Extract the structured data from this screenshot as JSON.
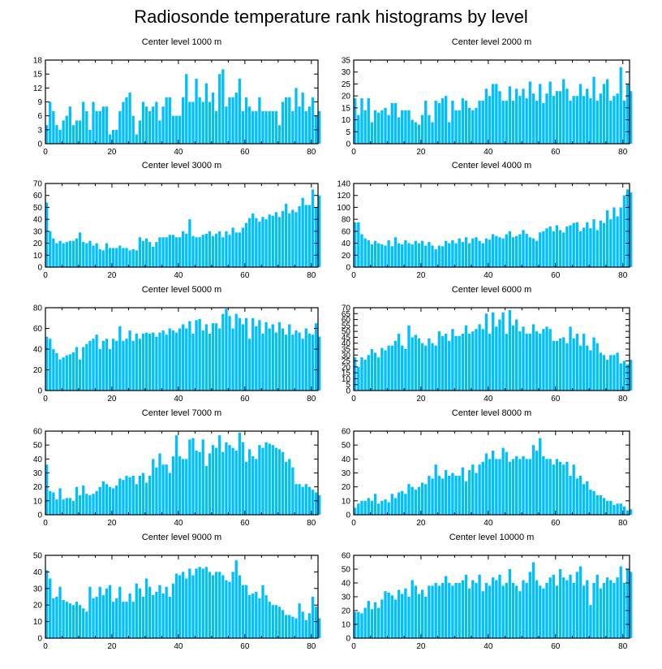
{
  "title": "Radiosonde temperature rank histograms by level",
  "bar_color": "#00bfff",
  "chart_data": [
    {
      "type": "bar",
      "title": "Center level 1000 m",
      "xlim": [
        0,
        82
      ],
      "ylim": [
        0,
        18
      ],
      "xticks": [
        0,
        20,
        40,
        60,
        80
      ],
      "yticks": [
        0,
        3,
        6,
        9,
        12,
        15,
        18
      ],
      "x_start": 0,
      "values": [
        4,
        9,
        7,
        4,
        3,
        5,
        6,
        8,
        4,
        5,
        5,
        9,
        7,
        3,
        9,
        7,
        7,
        8,
        8,
        2,
        3,
        3,
        7,
        9,
        10,
        11,
        6,
        2,
        5,
        9,
        8,
        7,
        8,
        9,
        5,
        8,
        10,
        10,
        6,
        6,
        6,
        10,
        15,
        9,
        9,
        14,
        10,
        9,
        13,
        9,
        11,
        7,
        15,
        16,
        8,
        10,
        10,
        11,
        14,
        7,
        10,
        8,
        7,
        7,
        10,
        7,
        7,
        7,
        7,
        7,
        4,
        9,
        10,
        10,
        7,
        12,
        8,
        11,
        7,
        8,
        10,
        6,
        7
      ]
    },
    {
      "type": "bar",
      "title": "Center level 2000 m",
      "xlim": [
        0,
        82
      ],
      "ylim": [
        0,
        35
      ],
      "xticks": [
        0,
        20,
        40,
        60,
        80
      ],
      "yticks": [
        0,
        5,
        10,
        15,
        20,
        25,
        30,
        35
      ],
      "x_start": 0,
      "values": [
        19,
        12,
        19,
        14,
        19,
        9,
        14,
        13,
        14,
        15,
        12,
        17,
        17,
        11,
        14,
        14,
        14,
        10,
        9,
        8,
        12,
        18,
        12,
        9,
        18,
        17,
        19,
        20,
        9,
        18,
        14,
        14,
        19,
        18,
        15,
        14,
        15,
        18,
        18,
        23,
        20,
        25,
        25,
        22,
        18,
        18,
        24,
        18,
        23,
        20,
        23,
        19,
        26,
        21,
        18,
        25,
        17,
        21,
        26,
        20,
        22,
        22,
        27,
        23,
        18,
        20,
        20,
        25,
        20,
        23,
        19,
        28,
        18,
        21,
        25,
        27,
        18,
        20,
        21,
        32,
        18,
        25,
        22
      ]
    },
    {
      "type": "bar",
      "title": "Center level 3000 m",
      "xlim": [
        0,
        82
      ],
      "ylim": [
        0,
        70
      ],
      "xticks": [
        0,
        20,
        40,
        60,
        80
      ],
      "yticks": [
        0,
        10,
        20,
        30,
        40,
        50,
        60,
        70
      ],
      "x_start": 0,
      "values": [
        54,
        30,
        24,
        20,
        22,
        20,
        21,
        22,
        22,
        24,
        29,
        21,
        20,
        22,
        18,
        20,
        15,
        14,
        20,
        16,
        16,
        16,
        18,
        16,
        16,
        14,
        15,
        14,
        25,
        22,
        24,
        21,
        17,
        21,
        25,
        25,
        25,
        27,
        27,
        25,
        25,
        30,
        28,
        40,
        26,
        25,
        25,
        27,
        28,
        30,
        26,
        28,
        30,
        25,
        30,
        27,
        33,
        29,
        29,
        33,
        37,
        41,
        45,
        41,
        38,
        42,
        40,
        44,
        43,
        46,
        42,
        47,
        53,
        45,
        48,
        46,
        51,
        58,
        52,
        52,
        65,
        50,
        60
      ]
    },
    {
      "type": "bar",
      "title": "Center level 4000 m",
      "xlim": [
        0,
        82
      ],
      "ylim": [
        0,
        140
      ],
      "xticks": [
        0,
        20,
        40,
        60,
        80
      ],
      "yticks": [
        0,
        20,
        40,
        60,
        80,
        100,
        120,
        140
      ],
      "x_start": 0,
      "values": [
        75,
        75,
        55,
        48,
        45,
        38,
        44,
        40,
        38,
        36,
        45,
        35,
        50,
        40,
        38,
        45,
        40,
        38,
        44,
        40,
        44,
        36,
        42,
        36,
        30,
        36,
        35,
        44,
        40,
        45,
        40,
        48,
        42,
        50,
        40,
        48,
        50,
        44,
        40,
        48,
        46,
        55,
        52,
        50,
        48,
        55,
        60,
        50,
        52,
        55,
        62,
        56,
        50,
        48,
        44,
        58,
        60,
        65,
        68,
        60,
        70,
        62,
        58,
        68,
        70,
        74,
        75,
        60,
        66,
        75,
        65,
        80,
        62,
        78,
        74,
        95,
        80,
        100,
        85,
        100,
        120,
        130,
        125
      ]
    },
    {
      "type": "bar",
      "title": "Center level 5000 m",
      "xlim": [
        0,
        82
      ],
      "ylim": [
        0,
        80
      ],
      "xticks": [
        0,
        20,
        40,
        60,
        80
      ],
      "yticks": [
        0,
        20,
        40,
        60,
        80
      ],
      "x_start": 0,
      "values": [
        52,
        50,
        40,
        36,
        30,
        32,
        34,
        35,
        37,
        42,
        30,
        42,
        45,
        48,
        50,
        54,
        40,
        48,
        50,
        40,
        50,
        48,
        62,
        48,
        50,
        58,
        48,
        55,
        50,
        55,
        56,
        55,
        56,
        52,
        56,
        58,
        54,
        60,
        58,
        56,
        60,
        64,
        60,
        67,
        55,
        68,
        69,
        58,
        64,
        55,
        65,
        65,
        60,
        74,
        79,
        72,
        60,
        74,
        70,
        64,
        70,
        50,
        70,
        62,
        68,
        55,
        66,
        60,
        64,
        56,
        66,
        60,
        54,
        64,
        54,
        58,
        56,
        50,
        60,
        55,
        54,
        65,
        52
      ]
    },
    {
      "type": "bar",
      "title": "Center level 6000 m",
      "xlim": [
        0,
        82
      ],
      "ylim": [
        0,
        70
      ],
      "xticks": [
        0,
        20,
        40,
        60,
        80
      ],
      "yticks": [
        0,
        5,
        10,
        15,
        20,
        25,
        30,
        35,
        40,
        45,
        50,
        55,
        60,
        65,
        70
      ],
      "x_start": 0,
      "values": [
        28,
        20,
        28,
        26,
        30,
        35,
        32,
        28,
        36,
        34,
        38,
        38,
        42,
        48,
        38,
        35,
        55,
        45,
        47,
        44,
        40,
        38,
        44,
        40,
        38,
        50,
        46,
        48,
        42,
        52,
        46,
        46,
        48,
        55,
        48,
        50,
        52,
        56,
        52,
        65,
        48,
        66,
        54,
        60,
        66,
        48,
        68,
        55,
        60,
        50,
        54,
        48,
        48,
        56,
        50,
        48,
        52,
        54,
        52,
        42,
        42,
        44,
        45,
        40,
        54,
        44,
        48,
        38,
        48,
        38,
        34,
        45,
        40,
        32,
        30,
        26,
        30,
        30,
        32,
        23,
        25,
        22,
        26
      ]
    },
    {
      "type": "bar",
      "title": "Center level 7000 m",
      "xlim": [
        0,
        82
      ],
      "ylim": [
        0,
        60
      ],
      "xticks": [
        0,
        20,
        40,
        60,
        80
      ],
      "yticks": [
        0,
        10,
        20,
        30,
        40,
        50,
        60
      ],
      "x_start": 0,
      "values": [
        36,
        17,
        16,
        11,
        19,
        11,
        12,
        12,
        10,
        20,
        14,
        21,
        15,
        14,
        15,
        17,
        20,
        24,
        22,
        20,
        19,
        21,
        26,
        25,
        28,
        27,
        28,
        22,
        28,
        30,
        23,
        28,
        40,
        34,
        44,
        36,
        36,
        30,
        42,
        57,
        42,
        40,
        40,
        54,
        55,
        46,
        45,
        54,
        35,
        44,
        50,
        48,
        57,
        45,
        52,
        50,
        48,
        46,
        59,
        52,
        38,
        47,
        42,
        40,
        50,
        48,
        52,
        51,
        50,
        48,
        47,
        45,
        38,
        40,
        34,
        22,
        22,
        20,
        22,
        20,
        18,
        16,
        14
      ]
    },
    {
      "type": "bar",
      "title": "Center level 8000 m",
      "xlim": [
        0,
        82
      ],
      "ylim": [
        0,
        60
      ],
      "xticks": [
        0,
        20,
        40,
        60,
        80
      ],
      "yticks": [
        0,
        10,
        20,
        30,
        40,
        50,
        60
      ],
      "x_start": 0,
      "values": [
        5,
        8,
        10,
        10,
        12,
        10,
        15,
        8,
        10,
        11,
        9,
        15,
        12,
        16,
        17,
        15,
        22,
        20,
        18,
        20,
        23,
        22,
        28,
        26,
        36,
        28,
        26,
        32,
        28,
        30,
        28,
        28,
        34,
        24,
        32,
        36,
        30,
        36,
        38,
        44,
        40,
        46,
        40,
        40,
        48,
        45,
        38,
        40,
        42,
        40,
        42,
        40,
        40,
        50,
        46,
        55,
        42,
        40,
        40,
        36,
        40,
        38,
        36,
        38,
        28,
        36,
        26,
        28,
        22,
        24,
        18,
        17,
        14,
        14,
        12,
        10,
        10,
        7,
        8,
        8,
        6,
        3,
        4
      ]
    },
    {
      "type": "bar",
      "title": "Center level 9000 m",
      "xlim": [
        0,
        82
      ],
      "ylim": [
        0,
        50
      ],
      "xticks": [
        0,
        20,
        40,
        60,
        80
      ],
      "yticks": [
        0,
        10,
        20,
        30,
        40,
        50
      ],
      "x_start": 0,
      "values": [
        41,
        36,
        24,
        25,
        31,
        23,
        22,
        21,
        20,
        22,
        20,
        18,
        16,
        31,
        24,
        25,
        31,
        26,
        30,
        32,
        22,
        24,
        31,
        22,
        22,
        27,
        22,
        33,
        30,
        25,
        36,
        31,
        26,
        28,
        32,
        27,
        31,
        25,
        33,
        39,
        38,
        40,
        36,
        42,
        38,
        42,
        43,
        42,
        43,
        40,
        38,
        40,
        40,
        38,
        35,
        34,
        40,
        47,
        38,
        32,
        32,
        26,
        27,
        28,
        24,
        32,
        26,
        22,
        20,
        20,
        19,
        17,
        14,
        14,
        13,
        12,
        21,
        16,
        11,
        15,
        25,
        19,
        12
      ]
    },
    {
      "type": "bar",
      "title": "Center level 10000 m",
      "xlim": [
        0,
        82
      ],
      "ylim": [
        0,
        60
      ],
      "xticks": [
        0,
        20,
        40,
        60,
        80
      ],
      "yticks": [
        0,
        10,
        20,
        30,
        40,
        50,
        60
      ],
      "x_start": 0,
      "values": [
        19,
        19,
        18,
        22,
        27,
        21,
        26,
        22,
        28,
        34,
        33,
        31,
        28,
        35,
        32,
        36,
        30,
        42,
        38,
        32,
        35,
        30,
        38,
        38,
        40,
        38,
        40,
        45,
        40,
        38,
        40,
        40,
        42,
        46,
        36,
        42,
        40,
        46,
        34,
        40,
        38,
        44,
        42,
        46,
        38,
        40,
        50,
        40,
        38,
        34,
        42,
        40,
        48,
        55,
        42,
        38,
        36,
        40,
        44,
        46,
        38,
        50,
        44,
        42,
        46,
        40,
        48,
        52,
        38,
        42,
        24,
        40,
        46,
        36,
        40,
        44,
        42,
        40,
        44,
        52,
        40,
        50,
        48
      ]
    }
  ]
}
